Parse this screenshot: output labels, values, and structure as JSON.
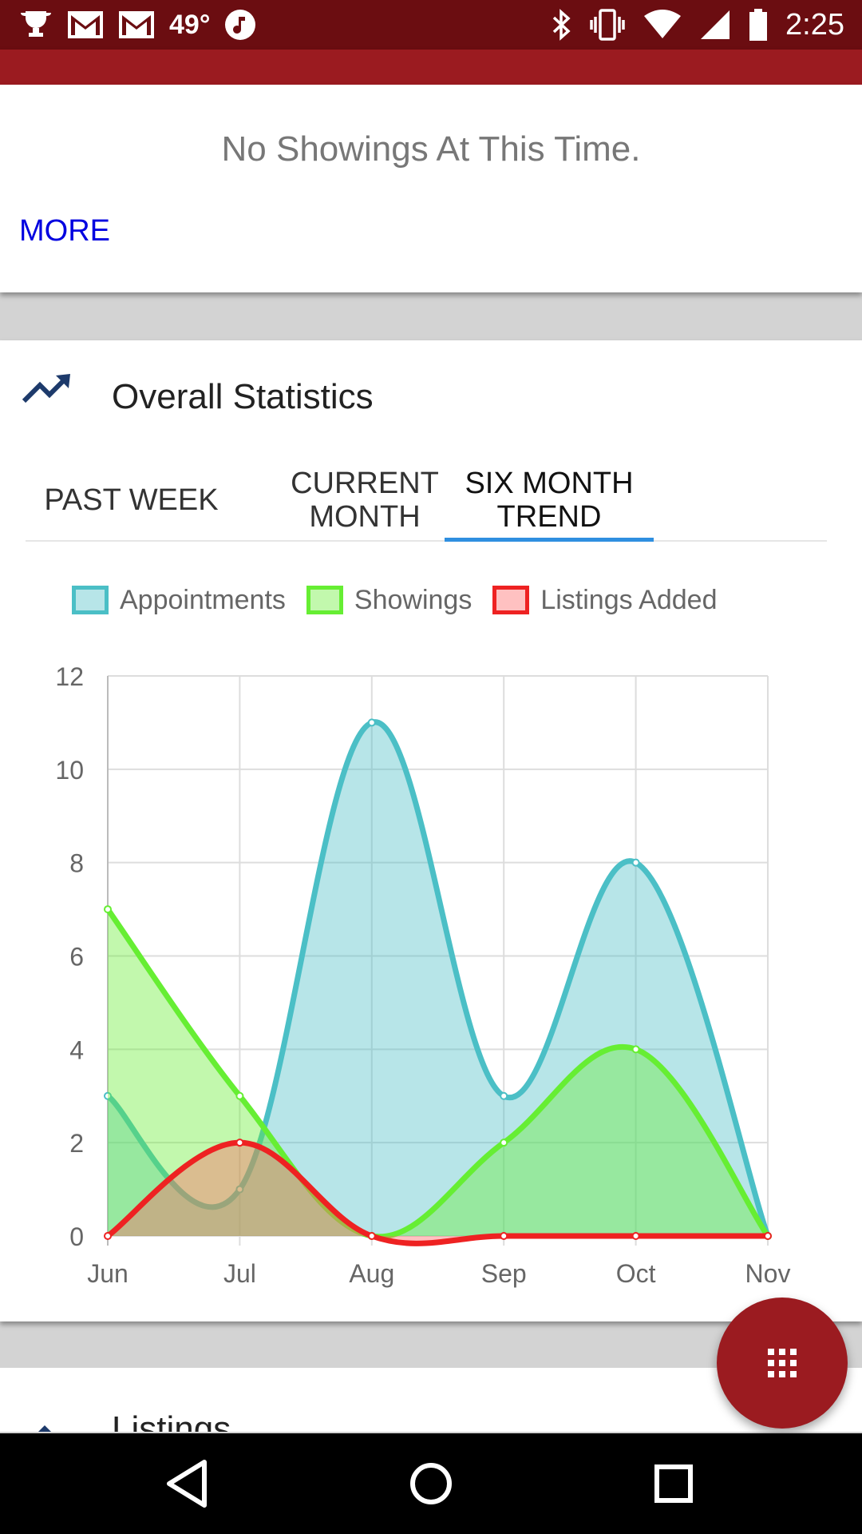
{
  "status_bar": {
    "temperature": "49°",
    "time": "2:25",
    "icons": [
      "trophy-icon",
      "gmail-icon",
      "gmail-icon",
      "music-icon",
      "bluetooth-icon",
      "vibrate-icon",
      "wifi-icon",
      "signal-icon",
      "battery-icon"
    ]
  },
  "showings": {
    "empty_message": "No Showings At This Time.",
    "more_label": "MORE"
  },
  "stats": {
    "title": "Overall Statistics",
    "icon": "trending-up-icon",
    "tabs": [
      {
        "label": "PAST WEEK"
      },
      {
        "label": "CURRENT MONTH"
      },
      {
        "label": "SIX MONTH TREND",
        "active": true
      }
    ]
  },
  "chart_data": {
    "type": "area",
    "categories": [
      "Jun",
      "Jul",
      "Aug",
      "Sep",
      "Oct",
      "Nov"
    ],
    "ylim": [
      0,
      12
    ],
    "yticks": [
      0,
      2,
      4,
      6,
      8,
      10,
      12
    ],
    "grid": true,
    "legend": "top",
    "series": [
      {
        "name": "Appointments",
        "values": [
          3,
          1,
          11,
          3,
          8,
          0
        ],
        "stroke": "#4bbfc6",
        "fill": "rgba(75,191,198,0.4)"
      },
      {
        "name": "Showings",
        "values": [
          7,
          3,
          0,
          2,
          4,
          0
        ],
        "stroke": "#66ee33",
        "fill": "rgba(102,238,51,0.4)"
      },
      {
        "name": "Listings Added",
        "values": [
          0,
          2,
          0,
          0,
          0,
          0
        ],
        "stroke": "#ee2222",
        "fill": "rgba(255,100,100,0.4)"
      }
    ]
  },
  "listings": {
    "title": "Listings"
  },
  "fab": {
    "icon": "grid-menu-icon"
  },
  "nav": {
    "icons": [
      "back-icon",
      "home-icon",
      "recents-icon"
    ]
  }
}
